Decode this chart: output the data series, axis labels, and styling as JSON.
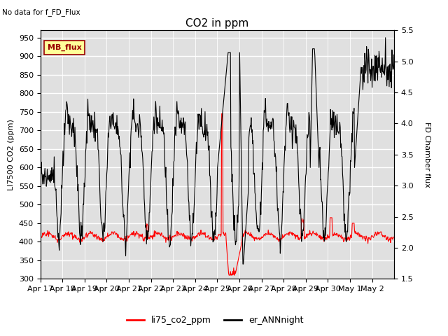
{
  "title": "CO2 in ppm",
  "top_left_text": "No data for f_FD_Flux",
  "ylabel_left": "LI7500 CO2 (ppm)",
  "ylabel_right": "FD Chamber flux",
  "ylim_left": [
    300,
    970
  ],
  "ylim_right": [
    1.5,
    5.5
  ],
  "yticks_left": [
    300,
    350,
    400,
    450,
    500,
    550,
    600,
    650,
    700,
    750,
    800,
    850,
    900,
    950
  ],
  "yticks_right": [
    1.5,
    2.0,
    2.5,
    3.0,
    3.5,
    4.0,
    4.5,
    5.0,
    5.5
  ],
  "xtick_labels": [
    "Apr 17",
    "Apr 18",
    "Apr 19",
    "Apr 20",
    "Apr 21",
    "Apr 22",
    "Apr 23",
    "Apr 24",
    "Apr 25",
    "Apr 26",
    "Apr 27",
    "Apr 28",
    "Apr 29",
    "Apr 30",
    "May 1",
    "May 2"
  ],
  "legend_items": [
    "li75_co2_ppm",
    "er_ANNnight"
  ],
  "legend_colors": [
    "red",
    "black"
  ],
  "color_red": "#ff0000",
  "color_black": "#000000",
  "bg_color": "#e0e0e0",
  "grid_color": "#ffffff",
  "mb_flux_label": "MB_flux",
  "mb_flux_bg": "#ffff99",
  "mb_flux_border": "#cc0000",
  "title_fontsize": 11,
  "label_fontsize": 8,
  "tick_fontsize": 8
}
